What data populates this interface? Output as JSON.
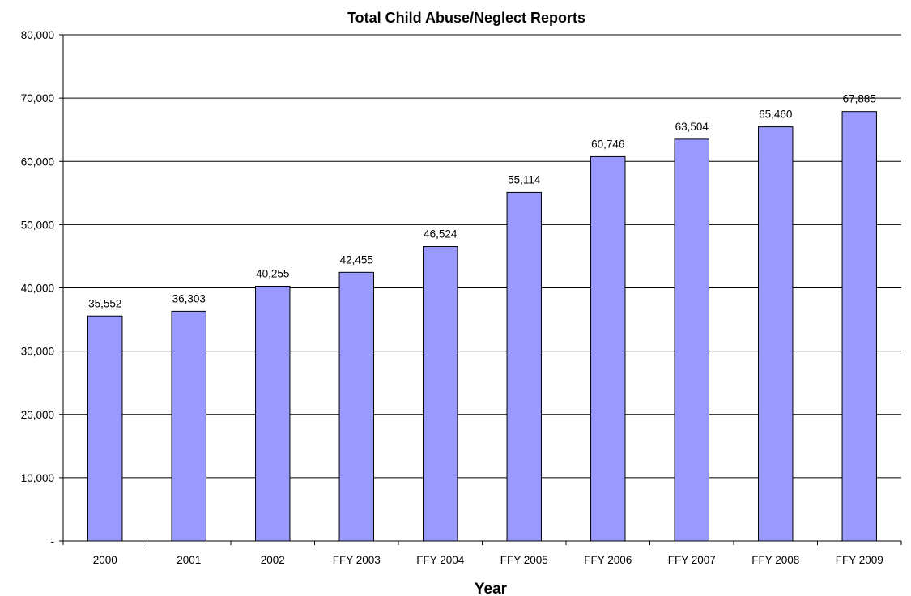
{
  "chart_data": {
    "type": "bar",
    "title": "Total Child Abuse/Neglect Reports",
    "xlabel": "Year",
    "ylabel": "",
    "categories": [
      "2000",
      "2001",
      "2002",
      "FFY 2003",
      "FFY 2004",
      "FFY 2005",
      "FFY 2006",
      "FFY 2007",
      "FFY 2008",
      "FFY 2009"
    ],
    "values": [
      35552,
      36303,
      40255,
      42455,
      46524,
      55114,
      60746,
      63504,
      65460,
      67885
    ],
    "data_labels": [
      "35,552",
      "36,303",
      "40,255",
      "42,455",
      "46,524",
      "55,114",
      "60,746",
      "63,504",
      "65,460",
      "67,885"
    ],
    "ylim": [
      0,
      80000
    ],
    "yticks": [
      0,
      10000,
      20000,
      30000,
      40000,
      50000,
      60000,
      70000,
      80000
    ],
    "ytick_labels": [
      "-",
      "10,000",
      "20,000",
      "30,000",
      "40,000",
      "50,000",
      "60,000",
      "70,000",
      "80,000"
    ],
    "grid": true,
    "legend": "none",
    "bar_color": "#9999ff"
  }
}
